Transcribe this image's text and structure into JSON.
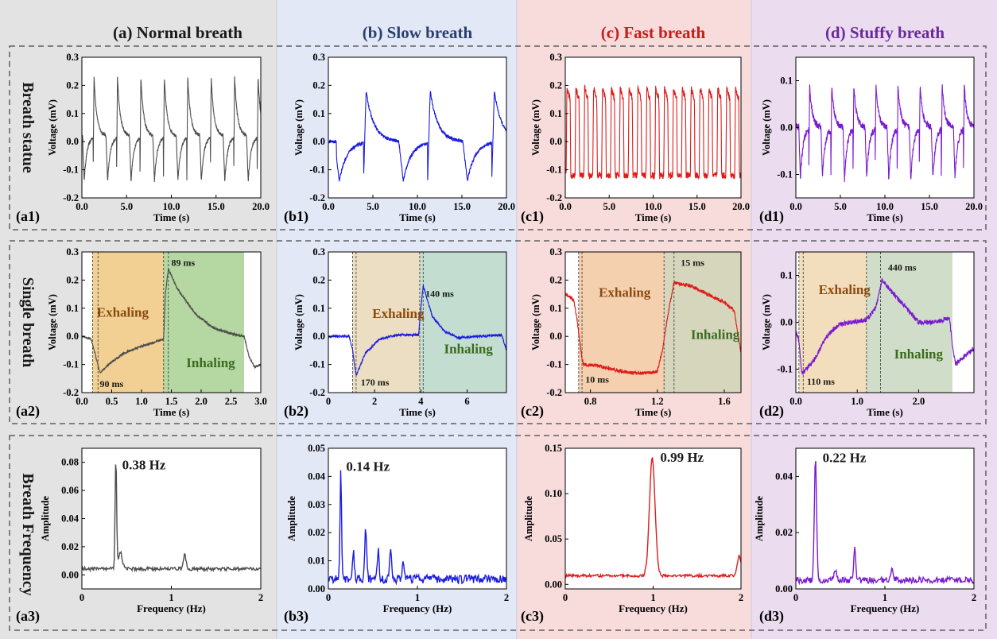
{
  "columns": [
    {
      "id": "a",
      "title": "(a) Normal breath",
      "color": "#1a1a1a",
      "bg": "#e3e3e3",
      "trace": "#4d4d4d"
    },
    {
      "id": "b",
      "title": "(b) Slow breath",
      "color": "#2b3f6e",
      "bg": "#e3e8f7",
      "trace": "#1a1ae0"
    },
    {
      "id": "c",
      "title": "(c) Fast breath",
      "color": "#d01818",
      "bg": "#f8dcdc",
      "trace": "#e01a1a"
    },
    {
      "id": "d",
      "title": "(d) Stuffy breath",
      "color": "#6a2a9a",
      "bg": "#ebdcf0",
      "trace": "#7a1ad0"
    }
  ],
  "rows": [
    {
      "id": "r1",
      "label": "Breath statue"
    },
    {
      "id": "r2",
      "label": "Single breath"
    },
    {
      "id": "r3",
      "label": "Breath Frequency"
    }
  ],
  "chart_data": [
    {
      "id": "a1",
      "panel_label": "(a1)",
      "type": "line",
      "xlabel": "Time (s)",
      "ylabel": "Voltage (mV)",
      "xlim": [
        0,
        20
      ],
      "ylim": [
        -0.2,
        0.3
      ],
      "xticks": [
        0,
        5,
        10,
        15,
        20
      ],
      "xtick_labels": [
        "0.0",
        "5.0",
        "10.0",
        "15.0",
        "20.0"
      ],
      "yticks": [
        -0.2,
        -0.1,
        0,
        0.1,
        0.2,
        0.3
      ],
      "ytick_labels": [
        "-0.2",
        "-0.1",
        "0.0",
        "0.1",
        "0.2",
        "0.3"
      ],
      "waveform": {
        "kind": "periodic",
        "period": 2.62,
        "phase": 1.25,
        "peak": 0.23,
        "trough": -0.14,
        "baseline": 0.02,
        "noise": 0.006,
        "x_start": 0.05
      }
    },
    {
      "id": "b1",
      "panel_label": "(b1)",
      "type": "line",
      "xlabel": "Time (s)",
      "ylabel": "Voltage (mV)",
      "xlim": [
        0,
        20
      ],
      "ylim": [
        -0.2,
        0.3
      ],
      "xticks": [
        0,
        5,
        10,
        15,
        20
      ],
      "xtick_labels": [
        "0.0",
        "5.0",
        "10.0",
        "15.0",
        "20.0"
      ],
      "yticks": [
        -0.2,
        -0.1,
        0,
        0.1,
        0.2,
        0.3
      ],
      "ytick_labels": [
        "-0.2",
        "-0.1",
        "0.0",
        "0.1",
        "0.2",
        "0.3"
      ],
      "waveform": {
        "kind": "periodic",
        "period": 7.2,
        "phase": 3.95,
        "peak": 0.18,
        "trough": -0.14,
        "baseline": 0.0,
        "noise": 0.006,
        "x_start": 0.1,
        "flat_start": 0.9
      }
    },
    {
      "id": "c1",
      "panel_label": "(c1)",
      "type": "line",
      "xlabel": "Time (s)",
      "ylabel": "Voltage (mV)",
      "xlim": [
        0,
        20
      ],
      "ylim": [
        -0.2,
        0.3
      ],
      "xticks": [
        0,
        5,
        10,
        15,
        20
      ],
      "xtick_labels": [
        "0.0",
        "5.0",
        "10.0",
        "15.0",
        "20.0"
      ],
      "yticks": [
        -0.2,
        -0.1,
        0,
        0.1,
        0.2,
        0.3
      ],
      "ytick_labels": [
        "-0.2",
        "-0.1",
        "0.0",
        "0.1",
        "0.2",
        "0.3"
      ],
      "waveform": {
        "kind": "square",
        "period": 1.01,
        "phase": 0.1,
        "high": 0.19,
        "low": -0.12,
        "noise": 0.012,
        "x_start": 0.0
      }
    },
    {
      "id": "d1",
      "panel_label": "(d1)",
      "type": "line",
      "xlabel": "Time (s)",
      "ylabel": "Voltage (mV)",
      "xlim": [
        0,
        20
      ],
      "ylim": [
        -0.15,
        0.15
      ],
      "xticks": [
        0,
        5,
        10,
        15,
        20
      ],
      "xtick_labels": [
        "0.0",
        "5.0",
        "10.0",
        "15.0",
        "20.0"
      ],
      "yticks": [
        -0.1,
        0,
        0.1
      ],
      "ytick_labels": [
        "-0.1",
        "0.0",
        "0.1"
      ],
      "waveform": {
        "kind": "periodic",
        "period": 2.48,
        "phase": 1.45,
        "peak": 0.09,
        "trough": -0.11,
        "baseline": 0.0,
        "noise": 0.007,
        "x_start": 0.0
      }
    },
    {
      "id": "a2",
      "panel_label": "(a2)",
      "type": "line",
      "xlabel": "Time (s)",
      "ylabel": "Voltage (mV)",
      "xlim": [
        0,
        3
      ],
      "ylim": [
        -0.2,
        0.3
      ],
      "xticks": [
        0,
        0.5,
        1,
        1.5,
        2,
        2.5,
        3
      ],
      "xtick_labels": [
        "0.0",
        "0.5",
        "1.0",
        "1.5",
        "2.0",
        "2.5",
        "3.0"
      ],
      "yticks": [
        -0.2,
        -0.1,
        0,
        0.1,
        0.2,
        0.3
      ],
      "ytick_labels": [
        "-0.2",
        "-0.1",
        "0.0",
        "0.1",
        "0.2",
        "0.3"
      ],
      "curve": [
        [
          0,
          0
        ],
        [
          0.15,
          -0.01
        ],
        [
          0.22,
          -0.06
        ],
        [
          0.3,
          -0.13
        ],
        [
          0.45,
          -0.1
        ],
        [
          0.7,
          -0.06
        ],
        [
          1.0,
          -0.035
        ],
        [
          1.3,
          -0.015
        ],
        [
          1.37,
          -0.01
        ],
        [
          1.4,
          0.15
        ],
        [
          1.45,
          0.24
        ],
        [
          1.6,
          0.17
        ],
        [
          1.9,
          0.08
        ],
        [
          2.2,
          0.03
        ],
        [
          2.5,
          0.01
        ],
        [
          2.72,
          0.0
        ],
        [
          2.8,
          -0.07
        ],
        [
          2.9,
          -0.11
        ],
        [
          3.0,
          -0.1
        ]
      ],
      "noise": 0.004,
      "regions": [
        {
          "name": "Exhaling",
          "x0": 0.18,
          "x1": 1.37,
          "color": "#f0c880"
        },
        {
          "name": "Inhaling",
          "x0": 1.37,
          "x1": 2.72,
          "color": "#a8d090"
        }
      ],
      "vlines": [
        0.18,
        0.27,
        1.37,
        1.45
      ],
      "annotations": [
        {
          "text": "Exhaling",
          "x": 0.25,
          "y": 0.07,
          "color": "#8b4a10",
          "size": 17
        },
        {
          "text": "Inhaling",
          "x": 1.75,
          "y": -0.11,
          "color": "#3a6b1e",
          "size": 17
        },
        {
          "text": "89 ms",
          "x": 1.5,
          "y": 0.25,
          "color": "#1a1a1a",
          "size": 12
        },
        {
          "text": "90 ms",
          "x": 0.3,
          "y": -0.18,
          "color": "#1a1a1a",
          "size": 12
        }
      ]
    },
    {
      "id": "b2",
      "panel_label": "(b2)",
      "type": "line",
      "xlabel": "Time (s)",
      "ylabel": "Voltage (mV)",
      "xlim": [
        0,
        7.7
      ],
      "ylim": [
        -0.2,
        0.3
      ],
      "xticks": [
        0,
        2,
        4,
        6
      ],
      "xtick_labels": [
        "0",
        "2",
        "4",
        "6"
      ],
      "yticks": [
        -0.2,
        -0.1,
        0,
        0.1,
        0.2,
        0.3
      ],
      "ytick_labels": [
        "-0.2",
        "-0.1",
        "0.0",
        "0.1",
        "0.2",
        "0.3"
      ],
      "curve": [
        [
          0,
          0
        ],
        [
          0.9,
          0.0
        ],
        [
          1.05,
          -0.05
        ],
        [
          1.2,
          -0.14
        ],
        [
          1.6,
          -0.06
        ],
        [
          2.2,
          -0.01
        ],
        [
          3.0,
          0.005
        ],
        [
          3.9,
          0.005
        ],
        [
          4.0,
          0.1
        ],
        [
          4.1,
          0.18
        ],
        [
          4.5,
          0.07
        ],
        [
          5.0,
          0.02
        ],
        [
          5.6,
          -0.005
        ],
        [
          6.5,
          0.0
        ],
        [
          7.5,
          0.005
        ],
        [
          7.7,
          -0.05
        ]
      ],
      "noise": 0.004,
      "regions": [
        {
          "name": "Exhaling",
          "x0": 1.05,
          "x1": 3.95,
          "color": "#e8d8b8"
        },
        {
          "name": "Inhaling",
          "x0": 3.95,
          "x1": 7.7,
          "color": "#b8d8c8"
        }
      ],
      "vlines": [
        1.05,
        1.2,
        3.95,
        4.1
      ],
      "annotations": [
        {
          "text": "Exhaling",
          "x": 1.9,
          "y": 0.065,
          "color": "#8b4a10",
          "size": 17
        },
        {
          "text": "Inhaling",
          "x": 5.0,
          "y": -0.06,
          "color": "#3a6b1e",
          "size": 17
        },
        {
          "text": "140 ms",
          "x": 4.2,
          "y": 0.14,
          "color": "#1a1a1a",
          "size": 12
        },
        {
          "text": "170 ms",
          "x": 1.4,
          "y": -0.175,
          "color": "#1a1a1a",
          "size": 12
        }
      ]
    },
    {
      "id": "c2",
      "panel_label": "(c2)",
      "type": "line",
      "xlabel": "Time (s)",
      "ylabel": "Voltage (mV)",
      "xlim": [
        0.65,
        1.7
      ],
      "ylim": [
        -0.2,
        0.3
      ],
      "xticks": [
        0.8,
        1.2,
        1.6
      ],
      "xtick_labels": [
        "0.8",
        "1.2",
        "1.6"
      ],
      "yticks": [
        -0.2,
        -0.1,
        0,
        0.1,
        0.2,
        0.3
      ],
      "ytick_labels": [
        "-0.2",
        "-0.1",
        "0.0",
        "0.1",
        "0.2",
        "0.3"
      ],
      "curve": [
        [
          0.65,
          0.15
        ],
        [
          0.7,
          0.13
        ],
        [
          0.72,
          0.06
        ],
        [
          0.75,
          -0.08
        ],
        [
          0.76,
          -0.1
        ],
        [
          0.85,
          -0.105
        ],
        [
          0.95,
          -0.12
        ],
        [
          1.05,
          -0.13
        ],
        [
          1.15,
          -0.13
        ],
        [
          1.2,
          -0.125
        ],
        [
          1.23,
          -0.05
        ],
        [
          1.27,
          0.1
        ],
        [
          1.3,
          0.19
        ],
        [
          1.4,
          0.18
        ],
        [
          1.5,
          0.15
        ],
        [
          1.6,
          0.12
        ],
        [
          1.66,
          0.09
        ],
        [
          1.7,
          -0.06
        ]
      ],
      "noise": 0.006,
      "regions": [
        {
          "name": "Exhaling",
          "x0": 0.73,
          "x1": 1.24,
          "color": "#f2c8a0"
        },
        {
          "name": "Inhaling",
          "x0": 1.24,
          "x1": 1.7,
          "color": "#cfcfb0"
        }
      ],
      "vlines": [
        0.73,
        0.75,
        1.24,
        1.3
      ],
      "annotations": [
        {
          "text": "Exhaling",
          "x": 0.85,
          "y": 0.14,
          "color": "#8b4a10",
          "size": 17
        },
        {
          "text": "Inhaling",
          "x": 1.4,
          "y": -0.01,
          "color": "#3a6b1e",
          "size": 17
        },
        {
          "text": "15 ms",
          "x": 1.34,
          "y": 0.25,
          "color": "#1a1a1a",
          "size": 12
        },
        {
          "text": "10 ms",
          "x": 0.77,
          "y": -0.165,
          "color": "#1a1a1a",
          "size": 12
        }
      ]
    },
    {
      "id": "d2",
      "panel_label": "(d2)",
      "type": "line",
      "xlabel": "Time (s)",
      "ylabel": "Voltage (mV)",
      "xlim": [
        0,
        2.9
      ],
      "ylim": [
        -0.15,
        0.15
      ],
      "xticks": [
        0,
        1,
        2
      ],
      "xtick_labels": [
        "0.0",
        "1.0",
        "2.0"
      ],
      "yticks": [
        -0.1,
        0,
        0.1
      ],
      "ytick_labels": [
        "-0.1",
        "0.0",
        "0.1"
      ],
      "curve": [
        [
          0,
          -0.02
        ],
        [
          0.05,
          -0.04
        ],
        [
          0.1,
          -0.11
        ],
        [
          0.3,
          -0.08
        ],
        [
          0.5,
          -0.03
        ],
        [
          0.7,
          -0.005
        ],
        [
          0.9,
          0.0
        ],
        [
          1.15,
          0.005
        ],
        [
          1.3,
          0.03
        ],
        [
          1.4,
          0.09
        ],
        [
          1.6,
          0.06
        ],
        [
          1.8,
          0.03
        ],
        [
          2.0,
          0.0
        ],
        [
          2.2,
          0.0
        ],
        [
          2.4,
          0.005
        ],
        [
          2.5,
          0.01
        ],
        [
          2.55,
          -0.05
        ],
        [
          2.6,
          -0.09
        ],
        [
          2.9,
          -0.055
        ]
      ],
      "noise": 0.005,
      "regions": [
        {
          "name": "Exhaling",
          "x0": 0.05,
          "x1": 1.15,
          "color": "#f0d8b0"
        },
        {
          "name": "Inhaling",
          "x0": 1.15,
          "x1": 2.55,
          "color": "#c8d8c0"
        }
      ],
      "vlines": [
        0.05,
        0.12,
        1.15,
        1.38
      ],
      "annotations": [
        {
          "text": "Exhaling",
          "x": 0.37,
          "y": 0.06,
          "color": "#8b4a10",
          "size": 17
        },
        {
          "text": "Inhaling",
          "x": 1.6,
          "y": -0.077,
          "color": "#3a6b1e",
          "size": 17
        },
        {
          "text": "440 ms",
          "x": 1.5,
          "y": 0.11,
          "color": "#1a1a1a",
          "size": 12
        },
        {
          "text": "110 ms",
          "x": 0.18,
          "y": -0.133,
          "color": "#1a1a1a",
          "size": 12
        }
      ]
    },
    {
      "id": "a3",
      "panel_label": "(a3)",
      "type": "line",
      "xlabel": "Frequency (Hz)",
      "ylabel": "Amplitude",
      "xlim": [
        0,
        2
      ],
      "ylim": [
        -0.01,
        0.09
      ],
      "xticks": [
        0,
        1,
        2
      ],
      "xtick_labels": [
        "0",
        "1",
        "2"
      ],
      "yticks": [
        0,
        0.02,
        0.04,
        0.06,
        0.08
      ],
      "ytick_labels": [
        "0.00",
        "0.02",
        "0.04",
        "0.06",
        "0.08"
      ],
      "spectrum": {
        "base": 0.003,
        "noise": 0.0025,
        "peaks": [
          {
            "f": 0.38,
            "a": 0.08,
            "w": 0.012
          },
          {
            "f": 0.43,
            "a": 0.012,
            "w": 0.03
          },
          {
            "f": 1.15,
            "a": 0.01,
            "w": 0.02
          }
        ]
      },
      "peak_label": {
        "text": "0.38 Hz",
        "x": 0.45,
        "y": 0.075
      }
    },
    {
      "id": "b3",
      "panel_label": "(b3)",
      "type": "line",
      "xlabel": "Frequency (Hz)",
      "ylabel": "Amplitude",
      "xlim": [
        0,
        2
      ],
      "ylim": [
        0,
        0.05
      ],
      "xticks": [
        0,
        1,
        2
      ],
      "xtick_labels": [
        "0",
        "1",
        "2"
      ],
      "yticks": [
        0,
        0.01,
        0.02,
        0.03,
        0.04,
        0.05
      ],
      "ytick_labels": [
        "0.00",
        "0.01",
        "0.02",
        "0.03",
        "0.04",
        "0.05"
      ],
      "spectrum": {
        "base": 0.002,
        "noise": 0.003,
        "peaks": [
          {
            "f": 0.14,
            "a": 0.038,
            "w": 0.012
          },
          {
            "f": 0.28,
            "a": 0.01,
            "w": 0.015
          },
          {
            "f": 0.42,
            "a": 0.018,
            "w": 0.015
          },
          {
            "f": 0.56,
            "a": 0.01,
            "w": 0.015
          },
          {
            "f": 0.7,
            "a": 0.012,
            "w": 0.015
          },
          {
            "f": 0.84,
            "a": 0.006,
            "w": 0.015
          }
        ]
      },
      "peak_label": {
        "text": "0.14 Hz",
        "x": 0.2,
        "y": 0.042
      }
    },
    {
      "id": "c3",
      "panel_label": "(c3)",
      "type": "line",
      "xlabel": "Frequency (Hz)",
      "ylabel": "Amplitude",
      "xlim": [
        0,
        2
      ],
      "ylim": [
        -0.005,
        0.15
      ],
      "xticks": [
        0,
        1,
        2
      ],
      "xtick_labels": [
        "0",
        "1",
        "2"
      ],
      "yticks": [
        0,
        0.05,
        0.1,
        0.15
      ],
      "ytick_labels": [
        "0.00",
        "0.05",
        "0.10",
        "0.15"
      ],
      "spectrum": {
        "base": 0.008,
        "noise": 0.003,
        "peaks": [
          {
            "f": 0.99,
            "a": 0.13,
            "w": 0.045
          },
          {
            "f": 1.98,
            "a": 0.022,
            "w": 0.03
          }
        ]
      },
      "peak_label": {
        "text": "0.99 Hz",
        "x": 1.08,
        "y": 0.135
      }
    },
    {
      "id": "d3",
      "panel_label": "(d3)",
      "type": "line",
      "xlabel": "Frequency (Hz)",
      "ylabel": "Amplitude",
      "xlim": [
        0,
        2
      ],
      "ylim": [
        0,
        0.05
      ],
      "xticks": [
        0,
        1,
        2
      ],
      "xtick_labels": [
        "0",
        "1",
        "2"
      ],
      "yticks": [
        0,
        0.02,
        0.04
      ],
      "ytick_labels": [
        "0.00",
        "0.02",
        "0.04"
      ],
      "spectrum": {
        "base": 0.002,
        "noise": 0.0022,
        "peaks": [
          {
            "f": 0.22,
            "a": 0.043,
            "w": 0.018
          },
          {
            "f": 0.44,
            "a": 0.004,
            "w": 0.02
          },
          {
            "f": 0.66,
            "a": 0.012,
            "w": 0.015
          },
          {
            "f": 1.08,
            "a": 0.004,
            "w": 0.02
          }
        ]
      },
      "peak_label": {
        "text": "0.22 Hz",
        "x": 0.3,
        "y": 0.045
      }
    }
  ]
}
